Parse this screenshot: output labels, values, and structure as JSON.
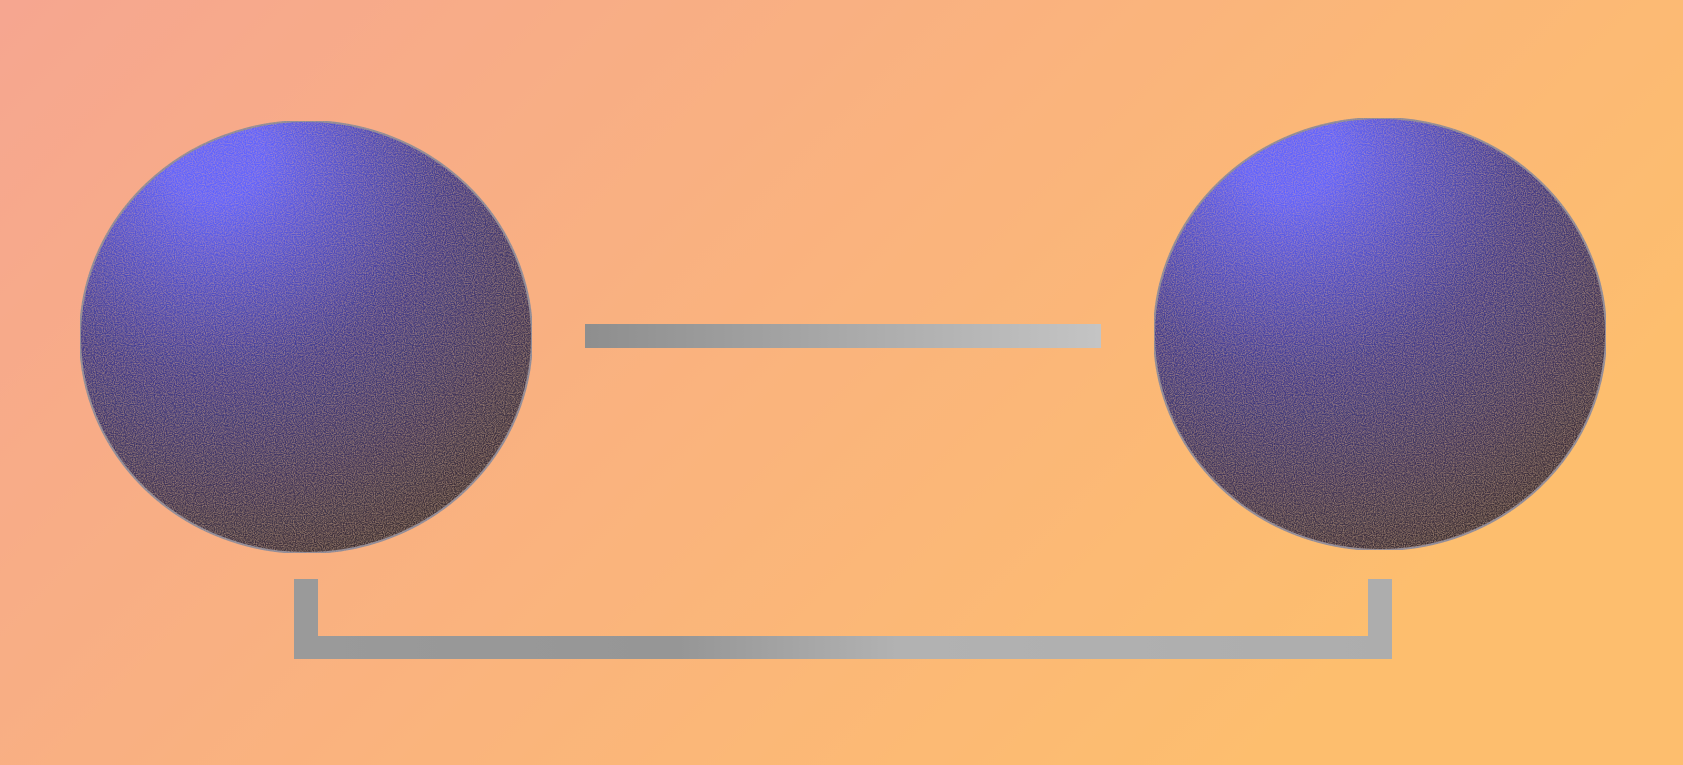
{
  "diagram": {
    "background": {
      "gradient_start": "#F6A690",
      "gradient_end": "#FDBE6E"
    },
    "nodes": [
      {
        "id": "left-node",
        "fill_highlight": "#5D62FF",
        "fill_shadow": "#3A2B22",
        "outline": "#8A8A9A"
      },
      {
        "id": "right-node",
        "fill_highlight": "#5D62FF",
        "fill_shadow": "#3A2B22",
        "outline": "#8A8A9A"
      }
    ],
    "connectors": [
      {
        "id": "top-connector",
        "from": "left-node",
        "to": "right-node",
        "style": "straight",
        "color_start": "#8E8E8E",
        "color_end": "#C4C4C4"
      },
      {
        "id": "bottom-connector",
        "from": "left-node",
        "to": "right-node",
        "style": "bracket",
        "color_start": "#9A9A9A",
        "color_end": "#B2B2B2"
      }
    ]
  }
}
